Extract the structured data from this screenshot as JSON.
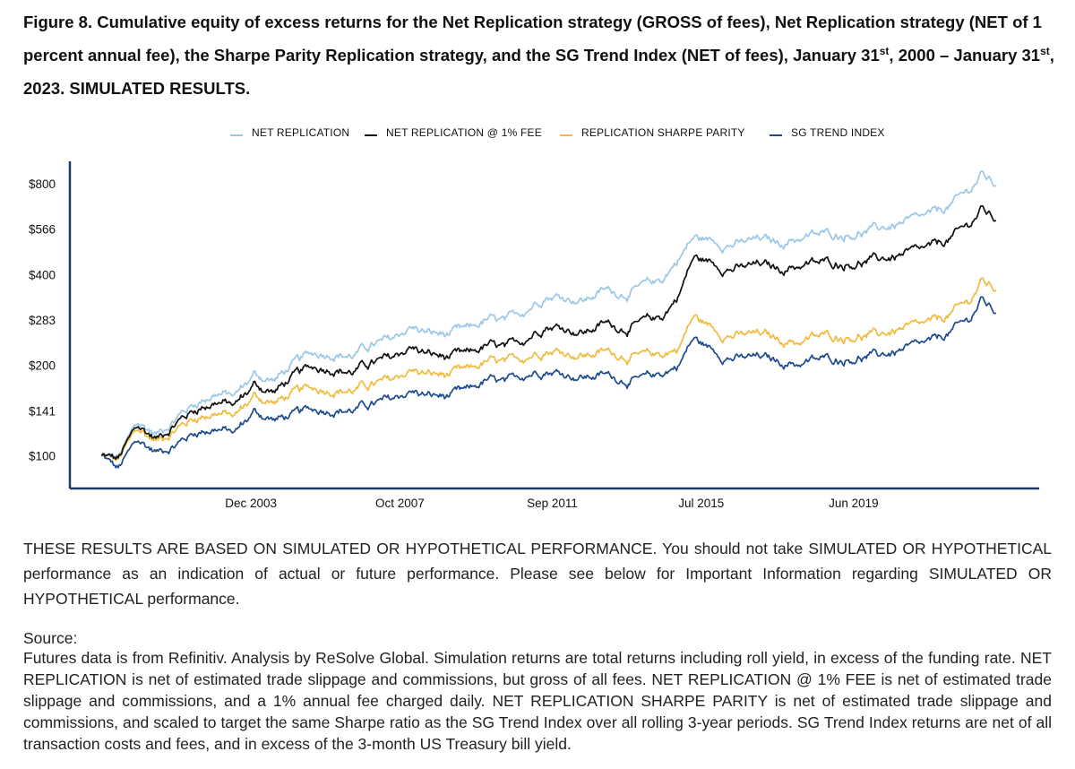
{
  "figure": {
    "title_p1": "Figure 8. Cumulative equity of excess returns for the Net Replication strategy (GROSS of fees), Net Replication strategy (NET of 1 percent annual fee), the Sharpe Parity Replication strategy, and the SG Trend Index (NET of fees), January 31",
    "title_sup1": "st",
    "title_p2": ", 2000 – January 31",
    "title_sup2": "st",
    "title_p3": ", 2023. SIMULATED RESULTS."
  },
  "chart_data": {
    "type": "line",
    "title": "",
    "xlabel": "",
    "ylabel": "",
    "y_scale": "log",
    "ylim": [
      78,
      950
    ],
    "xlim": [
      2000.0,
      2023.5
    ],
    "legend_position": "top-center",
    "x_ticks": [
      {
        "label": "Dec 2003",
        "value": 2003.92
      },
      {
        "label": "Oct 2007",
        "value": 2007.75
      },
      {
        "label": "Sep 2011",
        "value": 2011.67
      },
      {
        "label": "Jul 2015",
        "value": 2015.5
      },
      {
        "label": "Jun 2019",
        "value": 2019.42
      }
    ],
    "y_ticks": [
      {
        "label": "$100",
        "value": 100
      },
      {
        "label": "$141",
        "value": 141
      },
      {
        "label": "$200",
        "value": 200
      },
      {
        "label": "$283",
        "value": 283
      },
      {
        "label": "$400",
        "value": 400
      },
      {
        "label": "$566",
        "value": 566
      },
      {
        "label": "$800",
        "value": 800
      }
    ],
    "x": [
      2000.08,
      2000.5,
      2001.0,
      2001.5,
      2002.0,
      2002.5,
      2003.0,
      2003.5,
      2004.0,
      2004.5,
      2005.0,
      2005.5,
      2006.0,
      2006.5,
      2007.0,
      2007.5,
      2008.0,
      2008.5,
      2008.9,
      2009.5,
      2010.0,
      2010.5,
      2011.0,
      2011.5,
      2012.0,
      2012.5,
      2013.0,
      2013.5,
      2014.0,
      2014.5,
      2014.9,
      2015.3,
      2015.7,
      2016.0,
      2016.5,
      2017.0,
      2017.5,
      2018.0,
      2018.5,
      2019.0,
      2019.5,
      2020.0,
      2020.5,
      2021.0,
      2021.5,
      2022.0,
      2022.4,
      2022.7,
      2023.08
    ],
    "series": [
      {
        "name": "NET REPLICATION",
        "color": "#9cc8e8",
        "values": [
          100,
          98,
          128,
          118,
          135,
          150,
          162,
          158,
          186,
          178,
          200,
          218,
          222,
          215,
          232,
          240,
          268,
          255,
          252,
          260,
          282,
          275,
          308,
          345,
          338,
          330,
          355,
          348,
          362,
          385,
          450,
          530,
          520,
          512,
          505,
          522,
          508,
          530,
          540,
          545,
          552,
          562,
          585,
          600,
          630,
          690,
          760,
          860,
          790
        ]
      },
      {
        "name": "NET REPLICATION @ 1% FEE",
        "color": "#111111",
        "values": [
          100,
          97,
          125,
          114,
          130,
          143,
          152,
          147,
          172,
          163,
          182,
          196,
          198,
          190,
          203,
          208,
          230,
          217,
          212,
          215,
          232,
          224,
          247,
          275,
          267,
          258,
          275,
          267,
          275,
          290,
          340,
          455,
          440,
          428,
          418,
          430,
          416,
          430,
          435,
          437,
          440,
          445,
          460,
          470,
          490,
          535,
          585,
          660,
          605
        ]
      },
      {
        "name": "REPLICATION SHARPE PARITY",
        "color": "#f0bb3e",
        "values": [
          100,
          96,
          122,
          112,
          124,
          134,
          140,
          135,
          158,
          150,
          160,
          167,
          168,
          165,
          172,
          176,
          193,
          186,
          185,
          190,
          205,
          200,
          215,
          228,
          222,
          216,
          222,
          217,
          212,
          218,
          228,
          290,
          270,
          258,
          250,
          253,
          243,
          240,
          248,
          250,
          252,
          250,
          262,
          265,
          275,
          300,
          325,
          380,
          355
        ]
      },
      {
        "name": "SG TREND INDEX",
        "color": "#1e4b8c",
        "values": [
          100,
          90,
          112,
          103,
          110,
          120,
          124,
          119,
          140,
          132,
          136,
          142,
          144,
          142,
          148,
          152,
          164,
          158,
          157,
          163,
          178,
          172,
          188,
          195,
          188,
          183,
          186,
          180,
          178,
          188,
          200,
          245,
          228,
          218,
          210,
          212,
          205,
          203,
          208,
          210,
          213,
          214,
          222,
          228,
          238,
          262,
          283,
          330,
          298
        ]
      }
    ]
  },
  "disclaimer": "THESE RESULTS ARE BASED ON SIMULATED OR HYPOTHETICAL PERFORMANCE. You should not take SIMULATED OR HYPOTHETICAL performance as an indication of actual or future performance. Please see below for Important Information regarding SIMULATED OR HYPOTHETICAL performance.",
  "source": {
    "heading": "Source:",
    "text": "Futures data is from Refinitiv. Analysis by ReSolve Global. Simulation returns are total returns including roll yield, in excess of the funding rate. NET REPLICATION is net of estimated trade slippage and commissions, but gross of all fees. NET REPLICATION @ 1% FEE is net of estimated trade slippage and commissions, and a 1% annual fee charged daily. NET REPLICATION SHARPE PARITY is net of estimated trade slippage and commissions, and scaled to target the same Sharpe ratio as the SG Trend Index over all rolling 3-year periods. SG Trend Index returns are net of all transaction costs and fees, and in excess of the 3-month US Treasury bill yield."
  }
}
